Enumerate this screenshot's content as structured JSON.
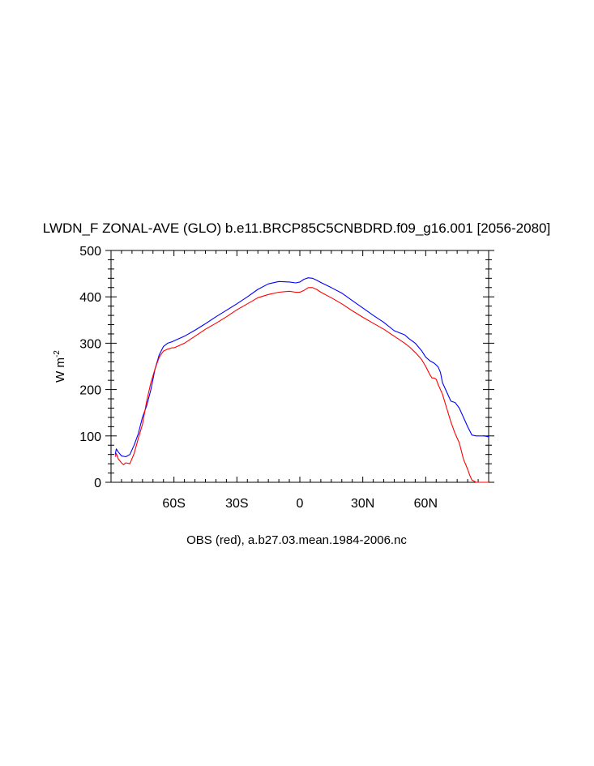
{
  "chart_data": {
    "type": "line",
    "title": "LWDN_F ZONAL-AVE (GLO) b.e11.BRCP85C5CNBDRD.f09_g16.001 [2056-2080]",
    "ylabel_main": "W m",
    "ylabel_exponent": "-2",
    "subtitle": "OBS (red), a.b27.03.mean.1984-2006.nc",
    "xlim": [
      -90,
      90
    ],
    "ylim": [
      0,
      500
    ],
    "x_ticks": [
      {
        "value": -60,
        "label": "60S"
      },
      {
        "value": -30,
        "label": "30S"
      },
      {
        "value": 0,
        "label": "0"
      },
      {
        "value": 30,
        "label": "30N"
      },
      {
        "value": 60,
        "label": "60N"
      }
    ],
    "y_ticks": [
      {
        "value": 0,
        "label": "0"
      },
      {
        "value": 100,
        "label": "100"
      },
      {
        "value": 200,
        "label": "200"
      },
      {
        "value": 300,
        "label": "300"
      },
      {
        "value": 400,
        "label": "400"
      },
      {
        "value": 500,
        "label": "500"
      }
    ],
    "series": [
      {
        "color": "#0000ff",
        "x": [
          -88,
          -87.5,
          -86.5,
          -85,
          -83,
          -81,
          -79,
          -77,
          -75,
          -73,
          -71,
          -69,
          -67,
          -65,
          -63,
          -61,
          -60,
          -55,
          -50,
          -45,
          -40,
          -35,
          -30,
          -25,
          -20,
          -15,
          -10,
          -5,
          -2,
          0,
          2,
          4,
          6,
          8,
          10,
          15,
          20,
          25,
          30,
          35,
          40,
          45,
          50,
          52,
          55,
          58,
          60,
          62,
          64,
          65,
          66,
          67,
          68,
          70,
          72,
          74,
          76,
          78,
          80,
          82,
          84,
          86,
          88,
          90
        ],
        "y": [
          60,
          72,
          65,
          57,
          55,
          60,
          80,
          105,
          140,
          165,
          200,
          245,
          275,
          293,
          300,
          303,
          305,
          315,
          328,
          342,
          357,
          371,
          385,
          400,
          416,
          428,
          433,
          432,
          430,
          432,
          438,
          441,
          440,
          436,
          431,
          420,
          408,
          392,
          376,
          360,
          345,
          327,
          318,
          310,
          300,
          284,
          270,
          262,
          257,
          253,
          248,
          237,
          215,
          195,
          175,
          172,
          160,
          140,
          120,
          102,
          100,
          100,
          100,
          98
        ]
      },
      {
        "color": "#ff0000",
        "x": [
          -88,
          -87.5,
          -86.5,
          -85,
          -84,
          -83,
          -81,
          -79,
          -77,
          -75,
          -73,
          -71,
          -69,
          -67,
          -65,
          -63,
          -61,
          -60,
          -55,
          -50,
          -45,
          -40,
          -35,
          -30,
          -25,
          -20,
          -15,
          -10,
          -5,
          -2,
          0,
          2,
          4,
          6,
          8,
          10,
          15,
          20,
          25,
          30,
          35,
          40,
          45,
          50,
          52,
          55,
          58,
          60,
          62,
          63,
          64,
          65,
          66,
          68,
          70,
          72,
          74,
          76,
          78,
          80,
          81,
          82,
          84,
          86,
          88,
          90
        ],
        "y": [
          55,
          62,
          50,
          42,
          38,
          42,
          40,
          62,
          95,
          125,
          175,
          215,
          245,
          270,
          283,
          287,
          290,
          290,
          300,
          315,
          330,
          343,
          357,
          372,
          385,
          398,
          405,
          410,
          412,
          410,
          410,
          414,
          420,
          420,
          416,
          410,
          398,
          385,
          370,
          356,
          343,
          330,
          315,
          300,
          293,
          280,
          265,
          250,
          232,
          225,
          225,
          222,
          210,
          190,
          160,
          130,
          105,
          85,
          50,
          28,
          15,
          5,
          0,
          0,
          0,
          0
        ]
      }
    ]
  }
}
